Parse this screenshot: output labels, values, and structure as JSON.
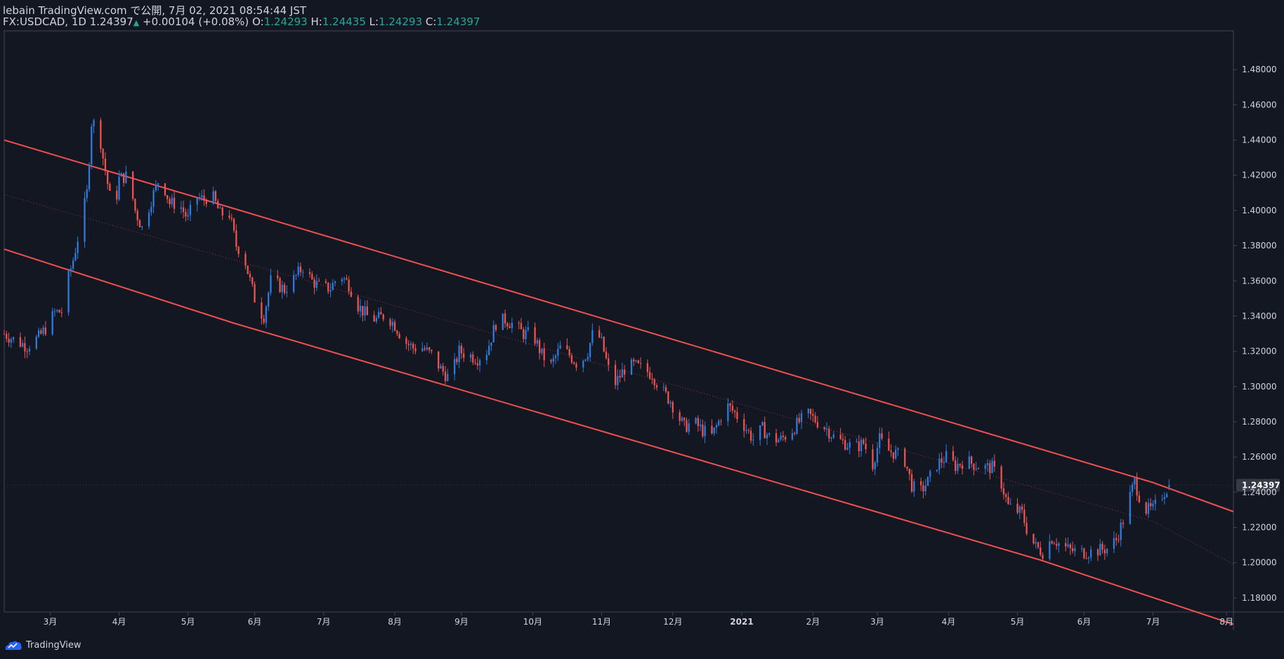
{
  "header": {
    "title": "lebain TradingView.com で公開, 7月 02, 2021 08:54:44 JST",
    "symbol": "FX:USDCAD",
    "interval": "1D",
    "last": "1.24397",
    "change_arrow": "▲",
    "change": "+0.00104 (+0.08%)",
    "o_label": "O:",
    "o": "1.24293",
    "h_label": "H:",
    "h": "1.24435",
    "l_label": "L:",
    "l": "1.24293",
    "c_label": "C:",
    "c": "1.24397"
  },
  "footer": {
    "brand": "TradingView"
  },
  "colors": {
    "background": "#131722",
    "up": "#2f7bdc",
    "down": "#ef5350",
    "channel": "#f05050",
    "text": "#d1d4dc",
    "teal": "#26a69a"
  },
  "chart_data": {
    "type": "candlestick",
    "symbol": "USDCAD",
    "x_ticks": [
      "3月",
      "4月",
      "5月",
      "6月",
      "7月",
      "8月",
      "9月",
      "10月",
      "11月",
      "12月",
      "2021",
      "2月",
      "3月",
      "4月",
      "5月",
      "6月",
      "7月",
      "8月"
    ],
    "x_range_days": [
      0,
      535
    ],
    "x_tick_days": [
      20,
      50,
      80,
      109,
      139,
      170,
      199,
      230,
      260,
      291,
      321,
      352,
      380,
      411,
      441,
      470,
      500,
      532
    ],
    "y_ticks": [
      "1.48000",
      "1.46000",
      "1.44000",
      "1.42000",
      "1.40000",
      "1.38000",
      "1.36000",
      "1.34000",
      "1.32000",
      "1.30000",
      "1.28000",
      "1.26000",
      "1.24000",
      "1.22000",
      "1.20000",
      "1.18000"
    ],
    "ylim": [
      1.172,
      1.502
    ],
    "last_price_label": "1.24397",
    "last_price": 1.24397,
    "channel": {
      "upper": [
        [
          0,
          1.44
        ],
        [
          500,
          1.2455
        ],
        [
          535,
          1.229
        ]
      ],
      "lower": [
        [
          0,
          1.378
        ],
        [
          100,
          1.336
        ],
        [
          451,
          1.2015
        ],
        [
          535,
          1.165
        ]
      ],
      "middle": [
        [
          0,
          1.409
        ],
        [
          500,
          1.2235
        ],
        [
          535,
          1.199
        ]
      ]
    },
    "closes": [
      [
        0,
        1.33
      ],
      [
        5,
        1.326
      ],
      [
        10,
        1.323
      ],
      [
        15,
        1.328
      ],
      [
        18,
        1.333
      ],
      [
        22,
        1.342
      ],
      [
        26,
        1.343
      ],
      [
        28,
        1.362
      ],
      [
        30,
        1.372
      ],
      [
        33,
        1.39
      ],
      [
        36,
        1.41
      ],
      [
        38,
        1.45
      ],
      [
        41,
        1.448
      ],
      [
        43,
        1.43
      ],
      [
        46,
        1.408
      ],
      [
        48,
        1.4
      ],
      [
        50,
        1.418
      ],
      [
        54,
        1.42
      ],
      [
        57,
        1.4
      ],
      [
        60,
        1.39
      ],
      [
        64,
        1.406
      ],
      [
        68,
        1.42
      ],
      [
        72,
        1.404
      ],
      [
        76,
        1.404
      ],
      [
        80,
        1.395
      ],
      [
        83,
        1.408
      ],
      [
        87,
        1.406
      ],
      [
        90,
        1.41
      ],
      [
        94,
        1.398
      ],
      [
        98,
        1.398
      ],
      [
        101,
        1.38
      ],
      [
        104,
        1.376
      ],
      [
        107,
        1.36
      ],
      [
        110,
        1.345
      ],
      [
        113,
        1.34
      ],
      [
        116,
        1.36
      ],
      [
        119,
        1.358
      ],
      [
        122,
        1.355
      ],
      [
        126,
        1.361
      ],
      [
        130,
        1.368
      ],
      [
        134,
        1.36
      ],
      [
        138,
        1.356
      ],
      [
        142,
        1.356
      ],
      [
        146,
        1.364
      ],
      [
        150,
        1.358
      ],
      [
        154,
        1.346
      ],
      [
        158,
        1.34
      ],
      [
        162,
        1.338
      ],
      [
        166,
        1.341
      ],
      [
        170,
        1.335
      ],
      [
        174,
        1.326
      ],
      [
        178,
        1.322
      ],
      [
        182,
        1.322
      ],
      [
        186,
        1.318
      ],
      [
        190,
        1.31
      ],
      [
        194,
        1.304
      ],
      [
        198,
        1.32
      ],
      [
        202,
        1.318
      ],
      [
        206,
        1.316
      ],
      [
        210,
        1.32
      ],
      [
        214,
        1.336
      ],
      [
        218,
        1.338
      ],
      [
        222,
        1.335
      ],
      [
        226,
        1.33
      ],
      [
        230,
        1.33
      ],
      [
        234,
        1.318
      ],
      [
        238,
        1.312
      ],
      [
        242,
        1.322
      ],
      [
        246,
        1.318
      ],
      [
        250,
        1.312
      ],
      [
        254,
        1.32
      ],
      [
        257,
        1.334
      ],
      [
        260,
        1.325
      ],
      [
        263,
        1.31
      ],
      [
        266,
        1.302
      ],
      [
        270,
        1.31
      ],
      [
        274,
        1.312
      ],
      [
        278,
        1.31
      ],
      [
        282,
        1.307
      ],
      [
        286,
        1.298
      ],
      [
        290,
        1.292
      ],
      [
        293,
        1.284
      ],
      [
        296,
        1.277
      ],
      [
        300,
        1.28
      ],
      [
        304,
        1.275
      ],
      [
        308,
        1.272
      ],
      [
        311,
        1.28
      ],
      [
        314,
        1.29
      ],
      [
        318,
        1.285
      ],
      [
        322,
        1.278
      ],
      [
        326,
        1.27
      ],
      [
        330,
        1.276
      ],
      [
        334,
        1.27
      ],
      [
        338,
        1.27
      ],
      [
        342,
        1.274
      ],
      [
        346,
        1.28
      ],
      [
        350,
        1.284
      ],
      [
        354,
        1.28
      ],
      [
        358,
        1.276
      ],
      [
        362,
        1.27
      ],
      [
        366,
        1.268
      ],
      [
        370,
        1.265
      ],
      [
        374,
        1.268
      ],
      [
        378,
        1.256
      ],
      [
        381,
        1.27
      ],
      [
        384,
        1.264
      ],
      [
        388,
        1.262
      ],
      [
        392,
        1.258
      ],
      [
        395,
        1.244
      ],
      [
        398,
        1.239
      ],
      [
        402,
        1.246
      ],
      [
        406,
        1.256
      ],
      [
        410,
        1.26
      ],
      [
        414,
        1.255
      ],
      [
        418,
        1.258
      ],
      [
        422,
        1.256
      ],
      [
        426,
        1.254
      ],
      [
        430,
        1.254
      ],
      [
        434,
        1.245
      ],
      [
        437,
        1.232
      ],
      [
        440,
        1.23
      ],
      [
        443,
        1.228
      ],
      [
        446,
        1.215
      ],
      [
        449,
        1.209
      ],
      [
        452,
        1.206
      ],
      [
        456,
        1.214
      ],
      [
        460,
        1.21
      ],
      [
        464,
        1.207
      ],
      [
        468,
        1.206
      ],
      [
        472,
        1.206
      ],
      [
        476,
        1.207
      ],
      [
        480,
        1.208
      ],
      [
        484,
        1.213
      ],
      [
        487,
        1.224
      ],
      [
        490,
        1.238
      ],
      [
        492,
        1.246
      ],
      [
        494,
        1.238
      ],
      [
        497,
        1.23
      ],
      [
        500,
        1.23
      ],
      [
        503,
        1.237
      ],
      [
        506,
        1.242
      ],
      [
        507,
        1.24397
      ]
    ]
  }
}
